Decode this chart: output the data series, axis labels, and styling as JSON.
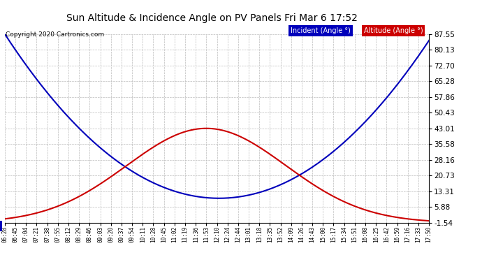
{
  "title": "Sun Altitude & Incidence Angle on PV Panels Fri Mar 6 17:52",
  "copyright": "Copyright 2020 Cartronics.com",
  "legend_incident": "Incident (Angle °)",
  "legend_altitude": "Altitude (Angle °)",
  "yticks": [
    87.55,
    80.13,
    72.7,
    65.28,
    57.86,
    50.43,
    43.01,
    35.58,
    28.16,
    20.73,
    13.31,
    5.88,
    -1.54
  ],
  "ymin": -1.54,
  "ymax": 87.55,
  "incident_color": "#0000bb",
  "altitude_color": "#cc0000",
  "bg_color": "#ffffff",
  "plot_bg_color": "#ffffff",
  "grid_color": "#bbbbbb",
  "xtick_labels": [
    "06:28",
    "06:45",
    "07:04",
    "07:21",
    "07:38",
    "07:55",
    "08:12",
    "08:29",
    "08:46",
    "09:03",
    "09:20",
    "09:37",
    "09:54",
    "10:11",
    "10:28",
    "10:45",
    "11:02",
    "11:19",
    "11:36",
    "11:53",
    "12:10",
    "12:24",
    "12:44",
    "13:01",
    "13:18",
    "13:35",
    "13:52",
    "14:09",
    "14:26",
    "14:43",
    "15:00",
    "15:17",
    "15:34",
    "15:51",
    "16:08",
    "16:25",
    "16:42",
    "16:59",
    "17:16",
    "17:33",
    "17:50"
  ]
}
